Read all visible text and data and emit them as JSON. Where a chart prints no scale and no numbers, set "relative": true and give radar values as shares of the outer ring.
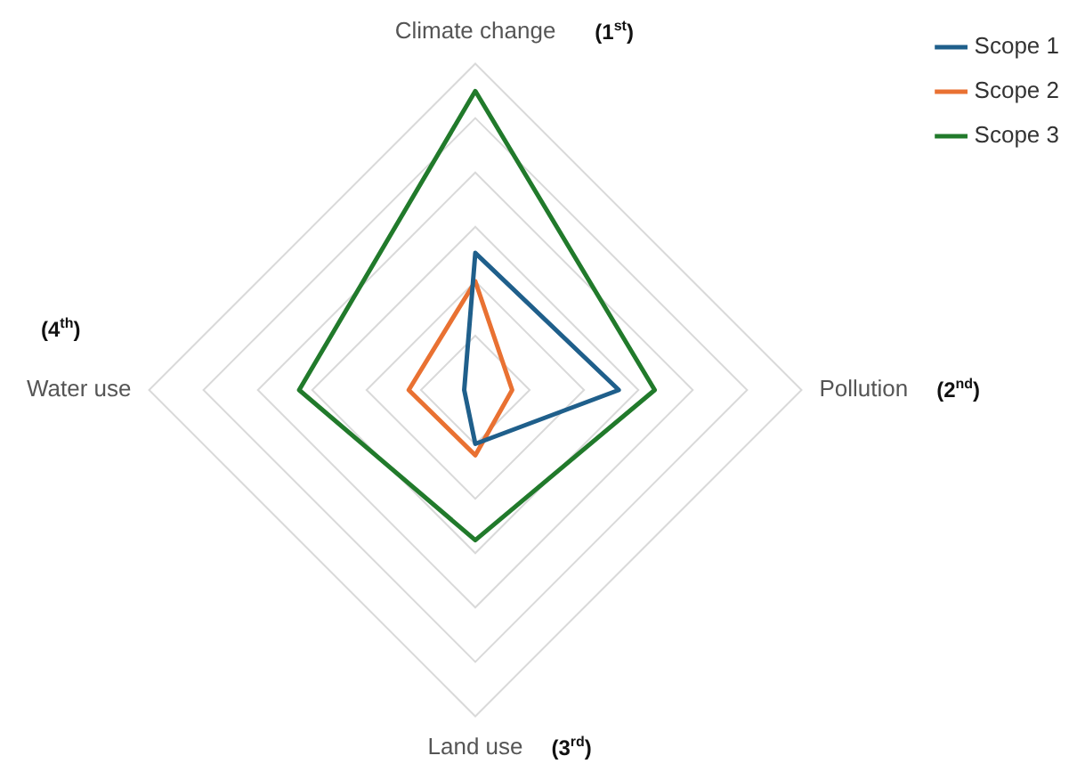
{
  "chart_data": {
    "type": "radar",
    "relative": true,
    "categories": [
      "Climate change",
      "Pollution",
      "Land use",
      "Water use"
    ],
    "series": [
      {
        "name": "Scope 1",
        "color": "#1f5f8b",
        "values": [
          0.42,
          0.44,
          0.165,
          0.034
        ]
      },
      {
        "name": "Scope 2",
        "color": "#e97132",
        "values": [
          0.333,
          0.113,
          0.2,
          0.204
        ]
      },
      {
        "name": "Scope 3",
        "color": "#217a2b",
        "values": [
          0.916,
          0.55,
          0.46,
          0.54
        ]
      }
    ],
    "annotations": [
      "(1$^{st}$)",
      "(2$^{nd}$)",
      "(3$^{rd}$)",
      "(4$^{th}$)"
    ],
    "grid": true,
    "legend": "top right",
    "marker": "none"
  }
}
